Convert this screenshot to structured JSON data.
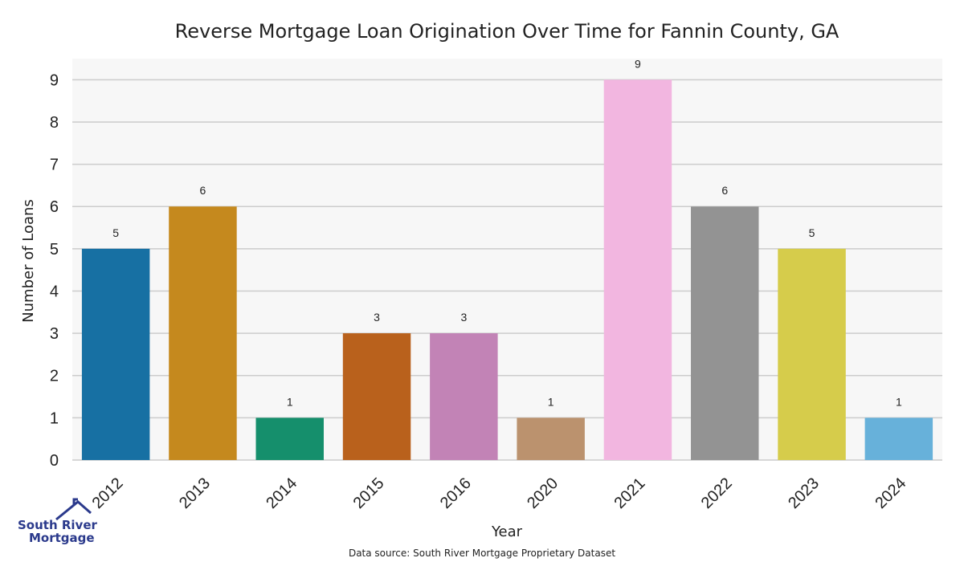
{
  "chart_data": {
    "type": "bar",
    "title": "Reverse Mortgage Loan Origination Over Time for Fannin County, GA",
    "xlabel": "Year",
    "ylabel": "Number of Loans",
    "categories": [
      "2012",
      "2013",
      "2014",
      "2015",
      "2016",
      "2020",
      "2021",
      "2022",
      "2023",
      "2024"
    ],
    "values": [
      5,
      6,
      1,
      3,
      3,
      1,
      9,
      6,
      5,
      1
    ],
    "colors": [
      "#1770a3",
      "#c5891e",
      "#158f6c",
      "#b9611c",
      "#c283b6",
      "#bb926e",
      "#f2b6e0",
      "#939393",
      "#d6cc4b",
      "#67b1da"
    ],
    "yticks": [
      0,
      1,
      2,
      3,
      4,
      5,
      6,
      7,
      8,
      9
    ],
    "ylim": [
      0,
      9.5
    ],
    "grid": true,
    "data_labels": true,
    "plot_background": "#f7f7f7",
    "grid_color": "#cccccc"
  },
  "source_note": "Data source: South River Mortgage Proprietary Dataset",
  "logo": {
    "line1": "South River",
    "line2": "Mortgage",
    "icon": "house-roof-icon",
    "color": "#2b3a8c"
  }
}
